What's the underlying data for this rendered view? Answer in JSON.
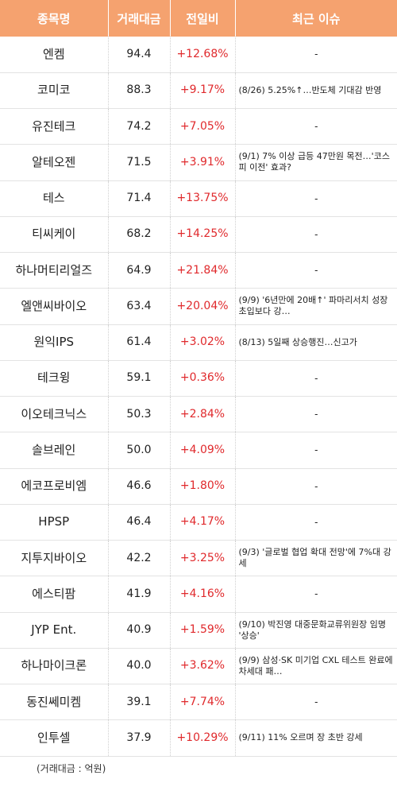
{
  "header": {
    "col_name": "종목명",
    "col_volume": "거래대금",
    "col_change": "전일비",
    "col_issue": "최근 이슈"
  },
  "rows": [
    {
      "name": "엔켐",
      "volume": "94.4",
      "change": "+12.68%",
      "issue": "-"
    },
    {
      "name": "코미코",
      "volume": "88.3",
      "change": "+9.17%",
      "issue": "(8/26) 5.25%↑…반도체 기대감 반영"
    },
    {
      "name": "유진테크",
      "volume": "74.2",
      "change": "+7.05%",
      "issue": "-"
    },
    {
      "name": "알테오젠",
      "volume": "71.5",
      "change": "+3.91%",
      "issue": "(9/1) 7% 이상 급등 47만원 목전…'코스피 이전' 효과?"
    },
    {
      "name": "테스",
      "volume": "71.4",
      "change": "+13.75%",
      "issue": "-"
    },
    {
      "name": "티씨케이",
      "volume": "68.2",
      "change": "+14.25%",
      "issue": "-"
    },
    {
      "name": "하나머티리얼즈",
      "volume": "64.9",
      "change": "+21.84%",
      "issue": "-"
    },
    {
      "name": "엘앤씨바이오",
      "volume": "63.4",
      "change": "+20.04%",
      "issue": "(9/9) '6년만에 20배↑' 파마리서치 성장 초입보다 강…"
    },
    {
      "name": "원익IPS",
      "volume": "61.4",
      "change": "+3.02%",
      "issue": "(8/13) 5일째 상승행진…신고가"
    },
    {
      "name": "테크윙",
      "volume": "59.1",
      "change": "+0.36%",
      "issue": "-"
    },
    {
      "name": "이오테크닉스",
      "volume": "50.3",
      "change": "+2.84%",
      "issue": "-"
    },
    {
      "name": "솔브레인",
      "volume": "50.0",
      "change": "+4.09%",
      "issue": "-"
    },
    {
      "name": "에코프로비엠",
      "volume": "46.6",
      "change": "+1.80%",
      "issue": "-"
    },
    {
      "name": "HPSP",
      "volume": "46.4",
      "change": "+4.17%",
      "issue": "-"
    },
    {
      "name": "지투지바이오",
      "volume": "42.2",
      "change": "+3.25%",
      "issue": "(9/3) '글로벌 협업 확대 전망'에 7%대 강세"
    },
    {
      "name": "에스티팜",
      "volume": "41.9",
      "change": "+4.16%",
      "issue": "-"
    },
    {
      "name": "JYP Ent.",
      "volume": "40.9",
      "change": "+1.59%",
      "issue": "(9/10) 박진영 대중문화교류위원장 임명 '상승'"
    },
    {
      "name": "하나마이크론",
      "volume": "40.0",
      "change": "+3.62%",
      "issue": "(9/9) 삼성·SK 미기업 CXL 테스트 완료에 차세대 패…"
    },
    {
      "name": "동진쎄미켐",
      "volume": "39.1",
      "change": "+7.74%",
      "issue": "-"
    },
    {
      "name": "인투셀",
      "volume": "37.9",
      "change": "+10.29%",
      "issue": "(9/11) 11% 오르며 장 초반 강세"
    }
  ],
  "footnote": "(거래대금 : 억원)",
  "colors": {
    "header_bg": "#f5a26f",
    "positive": "#e0292c"
  }
}
